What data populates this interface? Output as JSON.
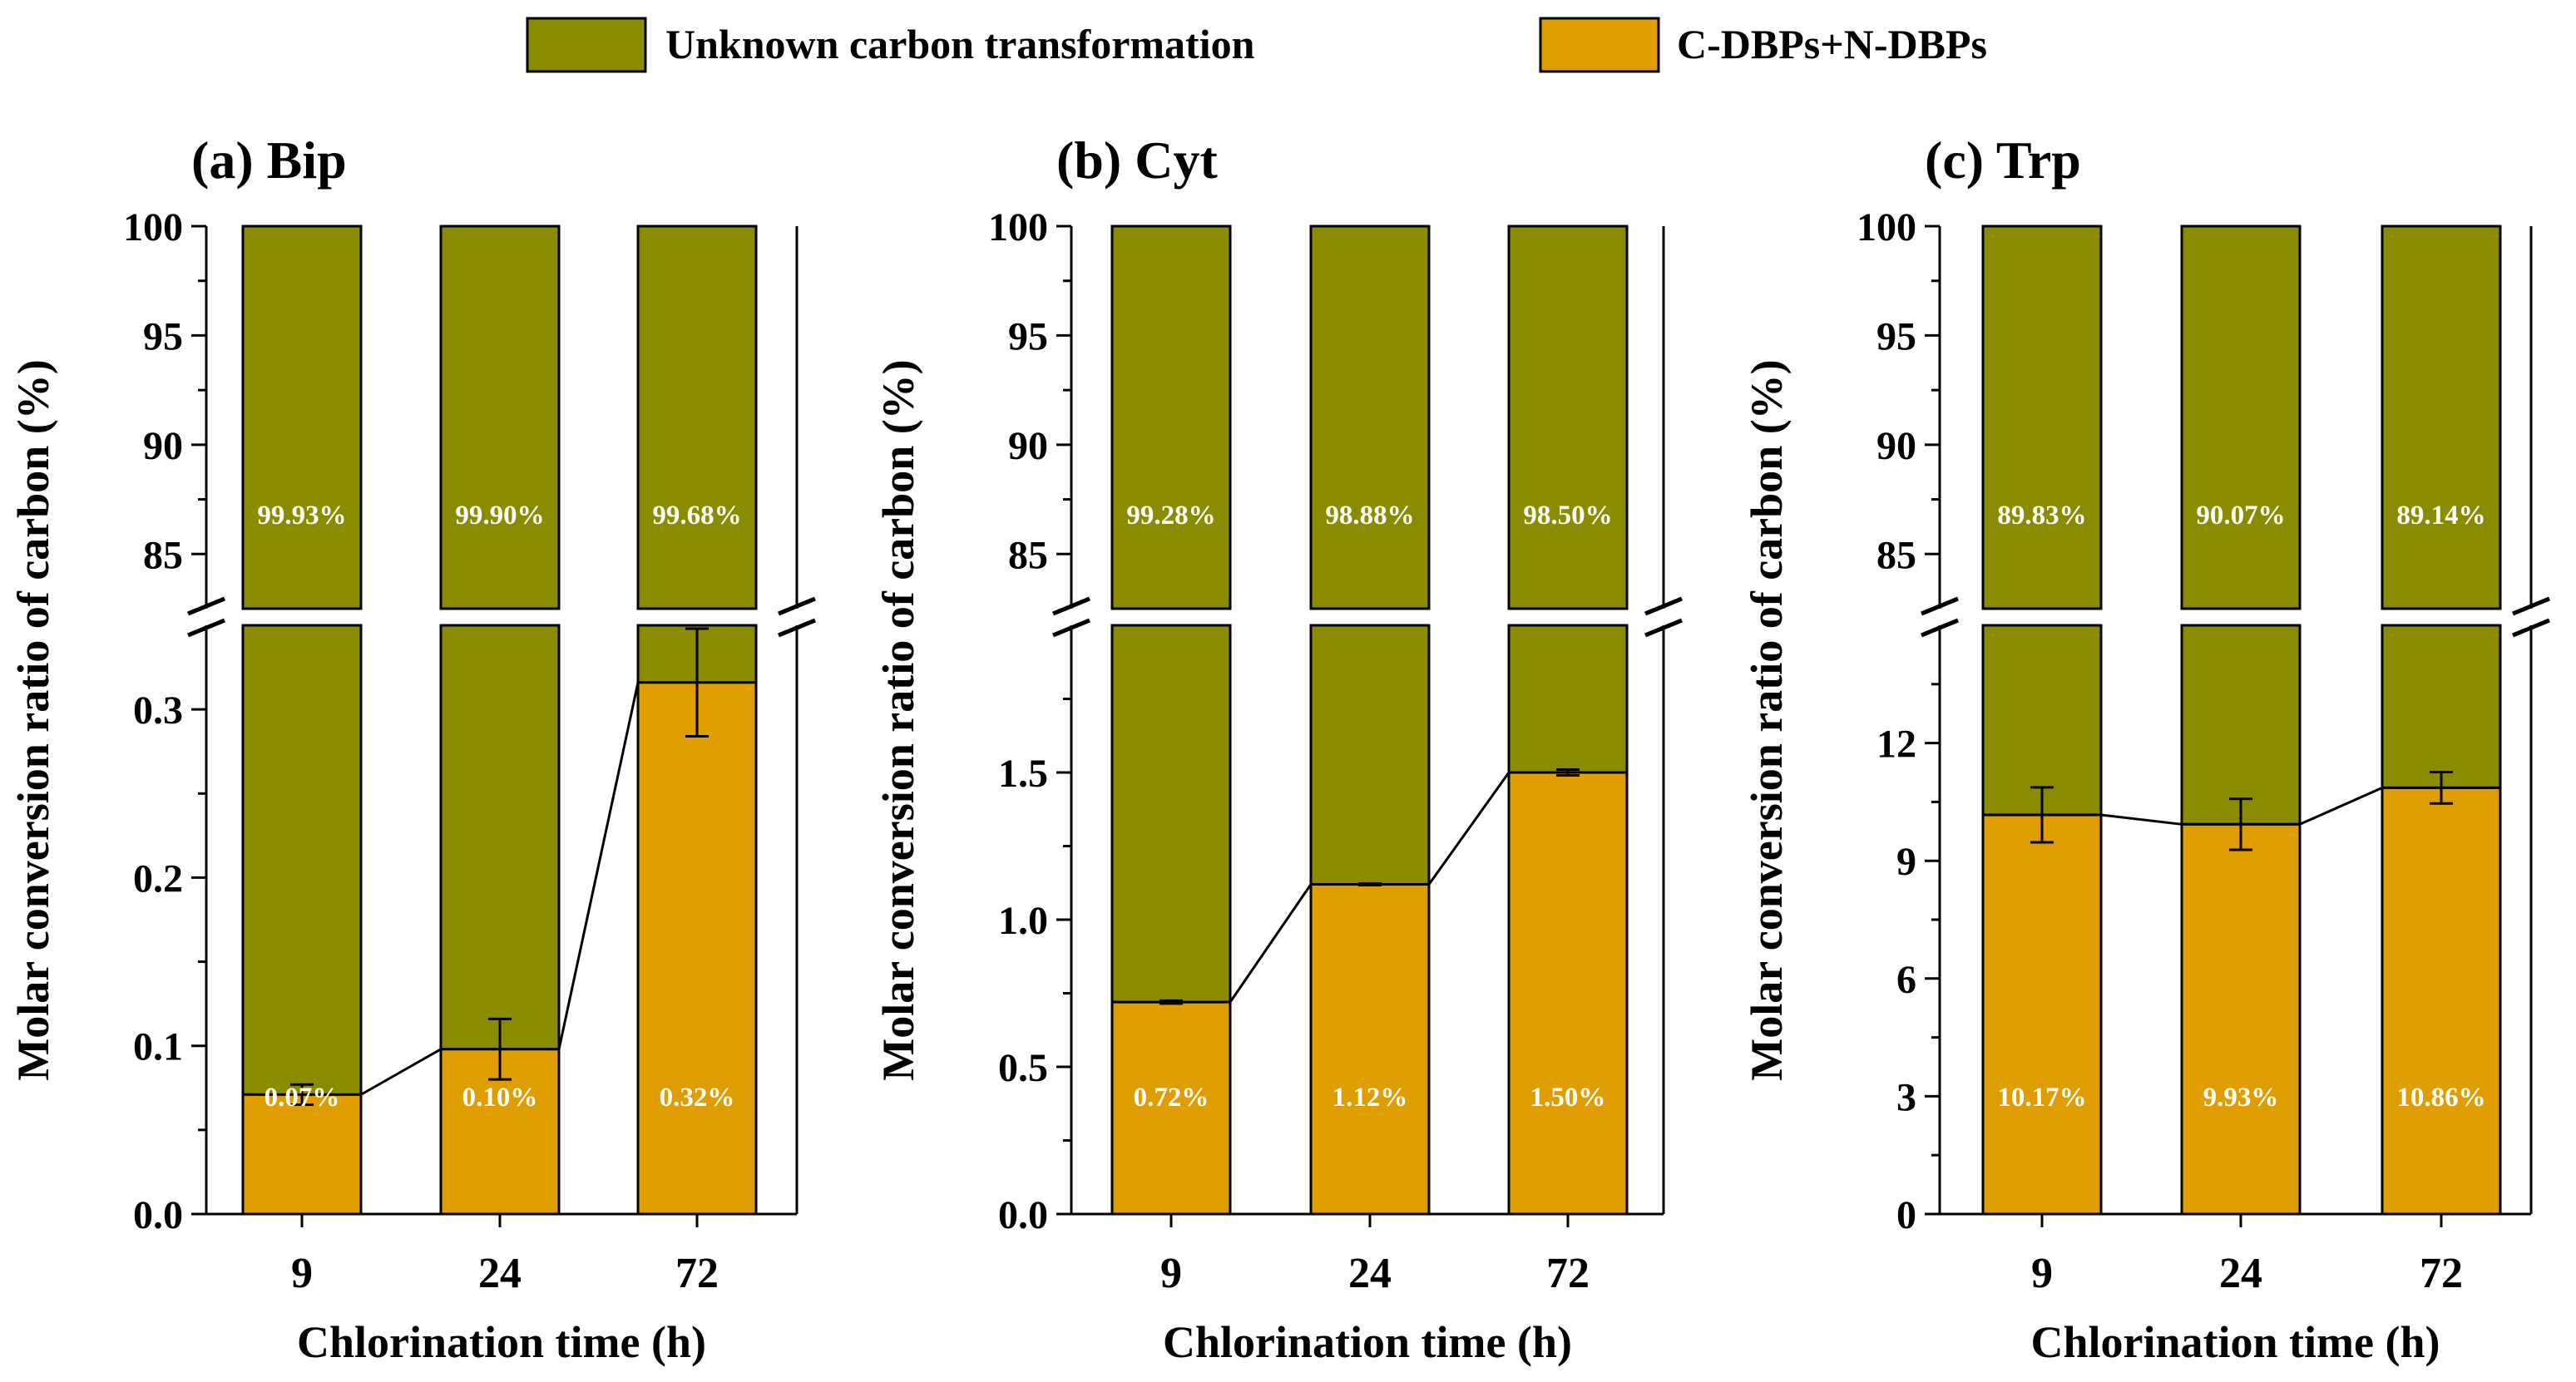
{
  "legend": {
    "placement": "top-center",
    "items": [
      {
        "label": "Unknown carbon transformation",
        "color": "#8b8b00"
      },
      {
        "label": "C-DBPs+N-DBPs",
        "color": "#e09d00"
      }
    ]
  },
  "colors": {
    "unknown": "#8b8b00",
    "dbps": "#e09d00",
    "axis": "#000000",
    "bar_label": "#ffffff"
  },
  "chart_data": [
    {
      "type": "bar",
      "stacked": true,
      "broken_axis": true,
      "title": "(a) Bip",
      "xlabel": "Chlorination time (h)",
      "ylabel": "Molar conversion ratio of carbon (%)",
      "categories": [
        "9",
        "24",
        "72"
      ],
      "series": [
        {
          "name": "C-DBPs+N-DBPs",
          "values": [
            0.07,
            0.1,
            0.32
          ],
          "plot_values": [
            0.071,
            0.098,
            0.316
          ],
          "error": [
            0.006,
            0.018,
            0.032
          ],
          "labels": [
            "0.07%",
            "0.10%",
            "0.32%"
          ]
        },
        {
          "name": "Unknown carbon transformation",
          "values": [
            99.93,
            99.9,
            99.68
          ],
          "labels": [
            "99.93%",
            "99.90%",
            "99.68%"
          ]
        }
      ],
      "lower_ylim": [
        0,
        0.35
      ],
      "lower_ticks": [
        "0.0",
        "0.1",
        "0.2",
        "0.3"
      ],
      "upper_ylim": [
        82.5,
        100
      ],
      "upper_ticks": [
        "85",
        "90",
        "95",
        "100"
      ]
    },
    {
      "type": "bar",
      "stacked": true,
      "broken_axis": true,
      "title": "(b) Cyt",
      "xlabel": "Chlorination time (h)",
      "ylabel": "Molar conversion ratio of carbon (%)",
      "categories": [
        "9",
        "24",
        "72"
      ],
      "series": [
        {
          "name": "C-DBPs+N-DBPs",
          "values": [
            0.72,
            1.12,
            1.5
          ],
          "plot_values": [
            0.72,
            1.12,
            1.5
          ],
          "error": [
            0.005,
            0,
            0.01
          ],
          "labels": [
            "0.72%",
            "1.12%",
            "1.50%"
          ]
        },
        {
          "name": "Unknown carbon transformation",
          "values": [
            99.28,
            98.88,
            98.5
          ],
          "labels": [
            "99.28%",
            "98.88%",
            "98.50%"
          ]
        }
      ],
      "lower_ylim": [
        0,
        2.0
      ],
      "lower_ticks": [
        "0.0",
        "0.5",
        "1.0",
        "1.5"
      ],
      "upper_ylim": [
        82.5,
        100
      ],
      "upper_ticks": [
        "85",
        "90",
        "95",
        "100"
      ]
    },
    {
      "type": "bar",
      "stacked": true,
      "broken_axis": true,
      "title": "(c) Trp",
      "xlabel": "Chlorination time (h)",
      "ylabel": "Molar conversion ratio of carbon (%)",
      "categories": [
        "9",
        "24",
        "72"
      ],
      "series": [
        {
          "name": "C-DBPs+N-DBPs",
          "values": [
            10.17,
            9.93,
            10.86
          ],
          "plot_values": [
            10.17,
            9.93,
            10.86
          ],
          "error": [
            0.7,
            0.65,
            0.4
          ],
          "labels": [
            "10.17%",
            "9.93%",
            "10.86%"
          ]
        },
        {
          "name": "Unknown carbon transformation",
          "values": [
            89.83,
            90.07,
            89.14
          ],
          "labels": [
            "89.83%",
            "90.07%",
            "89.14%"
          ]
        }
      ],
      "lower_ylim": [
        0,
        15
      ],
      "lower_ticks": [
        "0",
        "3",
        "6",
        "9",
        "12"
      ],
      "upper_ylim": [
        82.5,
        100
      ],
      "upper_ticks": [
        "85",
        "90",
        "95",
        "100"
      ]
    }
  ]
}
